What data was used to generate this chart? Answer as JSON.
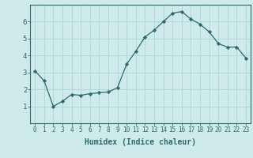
{
  "x": [
    0,
    1,
    2,
    3,
    4,
    5,
    6,
    7,
    8,
    9,
    10,
    11,
    12,
    13,
    14,
    15,
    16,
    17,
    18,
    19,
    20,
    21,
    22,
    23
  ],
  "y": [
    3.1,
    2.5,
    1.0,
    1.3,
    1.7,
    1.65,
    1.75,
    1.8,
    1.85,
    2.1,
    3.5,
    4.25,
    5.1,
    5.5,
    6.0,
    6.5,
    6.6,
    6.15,
    5.85,
    5.4,
    4.7,
    4.5,
    4.5,
    3.85
  ],
  "xlabel": "Humidex (Indice chaleur)",
  "xlabel_fontsize": 7,
  "line_color": "#2e6b6b",
  "marker": "D",
  "marker_size": 2.2,
  "bg_color": "#ceeaea",
  "grid_color": "#b0d8d8",
  "axis_color": "#2e6b6b",
  "tick_color": "#2e6b6b",
  "ylim": [
    0,
    7
  ],
  "xlim": [
    -0.5,
    23.5
  ],
  "yticks": [
    1,
    2,
    3,
    4,
    5,
    6
  ],
  "xticks": [
    0,
    1,
    2,
    3,
    4,
    5,
    6,
    7,
    8,
    9,
    10,
    11,
    12,
    13,
    14,
    15,
    16,
    17,
    18,
    19,
    20,
    21,
    22,
    23
  ],
  "xtick_labels": [
    "0",
    "1",
    "2",
    "3",
    "4",
    "5",
    "6",
    "7",
    "8",
    "9",
    "10",
    "11",
    "12",
    "13",
    "14",
    "15",
    "16",
    "17",
    "18",
    "19",
    "20",
    "21",
    "22",
    "23"
  ],
  "tick_fontsize": 5.5,
  "ytick_fontsize": 6.5
}
